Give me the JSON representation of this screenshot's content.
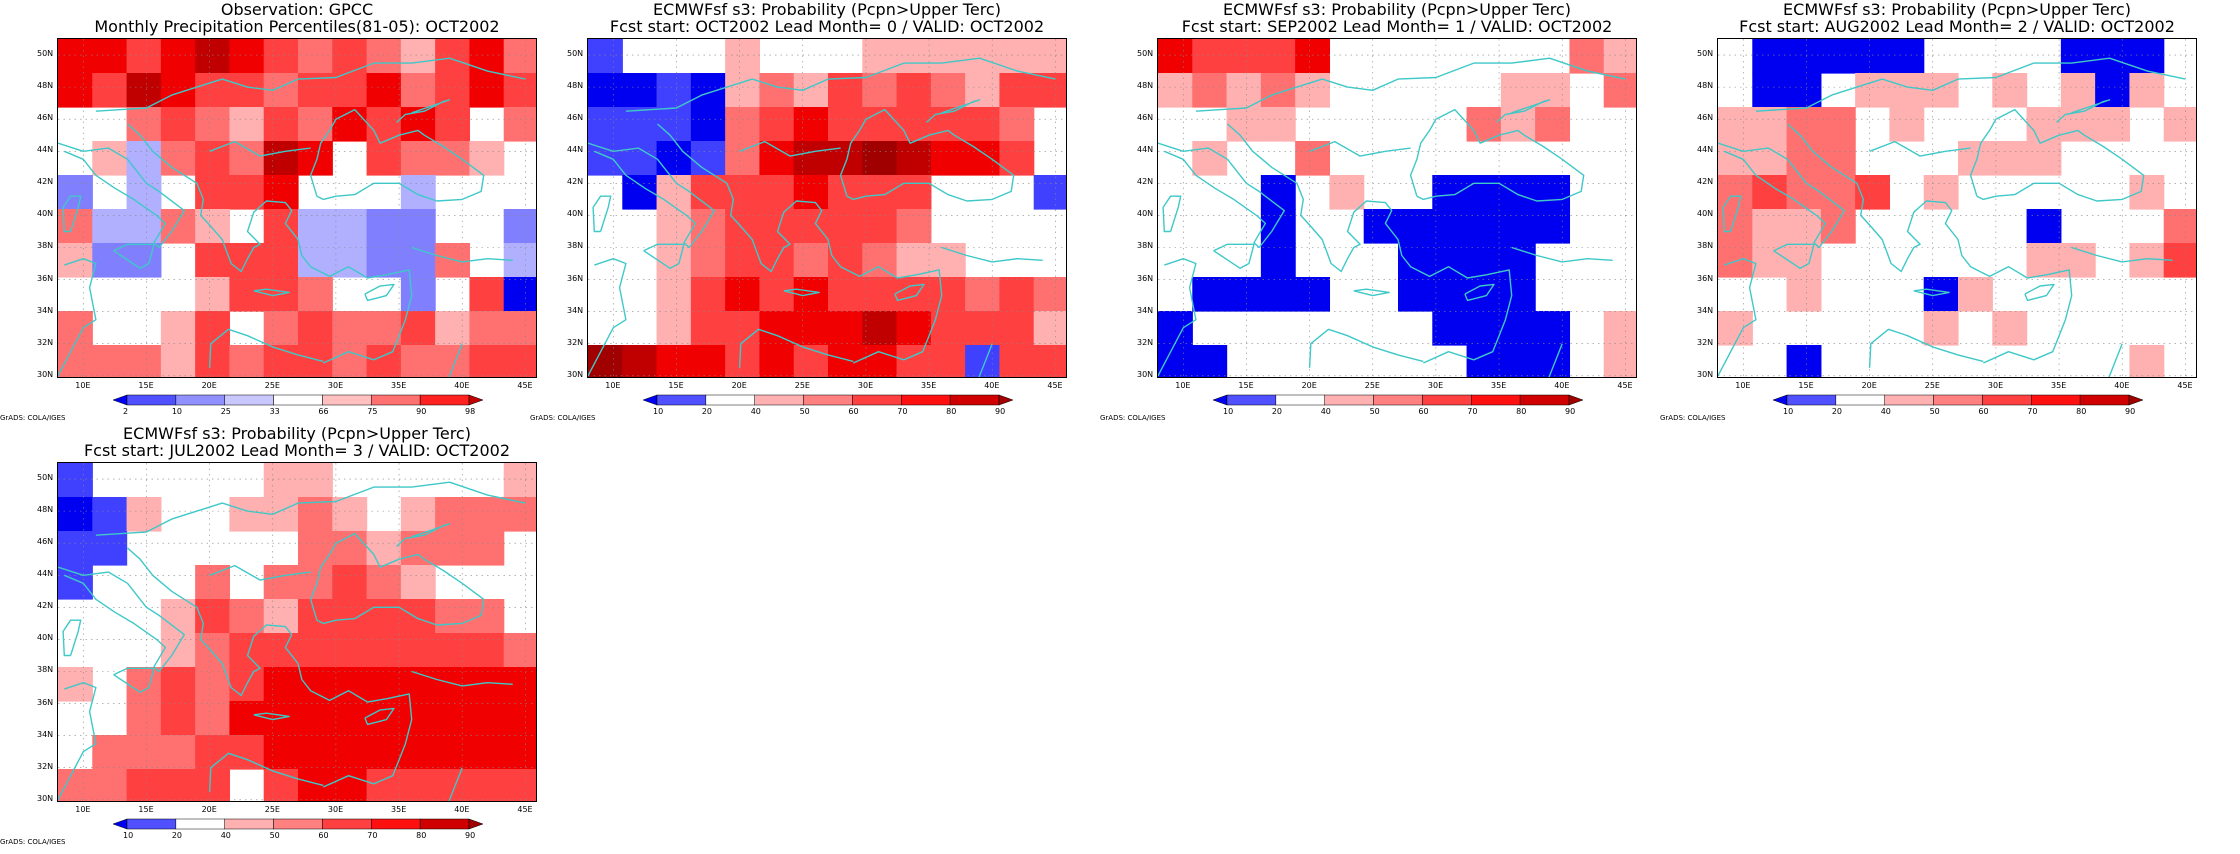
{
  "credit": "GrADS: COLA/IGES",
  "lon_labels": [
    "10E",
    "15E",
    "20E",
    "25E",
    "30E",
    "35E",
    "40E",
    "45E"
  ],
  "lat_labels": [
    "50N",
    "48N",
    "46N",
    "44N",
    "42N",
    "40N",
    "38N",
    "36N",
    "34N",
    "32N",
    "30N"
  ],
  "coast_color": "#3fc8c8",
  "obs_scale": {
    "labels": [
      "2",
      "10",
      "25",
      "33",
      "66",
      "75",
      "90",
      "98"
    ],
    "colors": [
      "#0000f0",
      "#5050ff",
      "#9090ff",
      "#c8c8ff",
      "#ffffff",
      "#ffc0c0",
      "#ff7070",
      "#ff2020",
      "#c00000"
    ]
  },
  "prob_scale": {
    "labels": [
      "10",
      "20",
      "40",
      "50",
      "60",
      "70",
      "80",
      "90"
    ],
    "colors": [
      "#0000f0",
      "#5050ff",
      "#ffffff",
      "#ffb0b0",
      "#ff8080",
      "#ff4040",
      "#ff1010",
      "#d00000",
      "#a00000"
    ]
  },
  "legend_codes": {
    "W": "#ffffff",
    "b1": "#0000f0",
    "b2": "#4040ff",
    "b3": "#8080ff",
    "b4": "#b0b0ff",
    "r1": "#ffb0b0",
    "r2": "#ff7070",
    "r3": "#ff4040",
    "r4": "#f00000",
    "r5": "#c00000",
    "r6": "#a00000"
  },
  "panels": [
    {
      "id": "obs",
      "title_line1": "Observation: GPCC",
      "title_line2": "Monthly Precipitation Percentiles(81-05): OCT2002",
      "scale": "obs_scale",
      "grid": [
        "r4 r4 r3 r4 r5 r4 r3 r2 r3 r2 r1 r3 r4 r2",
        "r4 r3 r5 r4 r3 r3 r2 r3 r3 r4 r2 r3 r4 r3",
        "W  W  r2 r3 r2 r1 r3 r2 r4 r3 r4 r3 W  r2",
        "W  r1 b4 r2 r3 r2 r5 r4 W  r3 r2 r2 r1 W ",
        "b3 W  b4 W  r3 r3 r4 W  W  W  b4 W  W  W ",
        "r2 b4 b4 r2 r1 W  r3 b4 b4 b3 b3 W  W  b3",
        "r1 b3 b3 W  r3 r3 r3 b4 b4 b3 b3 r2 W  b4",
        "W  W  W  W  r1 r3 r3 r2 W  W  b3 W  r3 b1",
        "r2 W  W  r1 r3 W  r2 r3 r2 r2 r3 r1 r2 r2",
        "r2 r2 r2 r1 r3 r2 r3 r3 r2 r3 r2 r2 r3 r3"
      ]
    },
    {
      "id": "lead0",
      "title_line1": "ECMWFsf s3: Probability (Pcpn>Upper Terc)",
      "title_line2": "Fcst start: OCT2002  Lead Month= 0 / VALID: OCT2002",
      "scale": "prob_scale",
      "grid": [
        "b2 W  W  W  r1 W  W  W  r1 r1 r1 r1 r1 r1",
        "b1 b1 b2 b1 r1 r2 r1 r3 r2 r3 r2 r1 r3 r3",
        "b2 b2 b2 b1 r2 r3 r4 r3 r3 r3 r3 r3 r2 W ",
        "b2 b2 b1 b2 r2 r4 r5 r5 r6 r5 r4 r4 r3 W ",
        "W  b1 r1 r3 r3 r3 r4 r3 r3 r3 W  W  W  b2",
        "W  W  r1 r2 r3 r3 r3 r3 r3 r2 W  W  W  W ",
        "W  W  r1 r2 r3 r3 r2 r3 r2 r1 r1 W  W  W ",
        "W  W  r1 r3 r4 r3 r4 r3 r3 r3 r3 r2 r3 r2",
        "W  W  r1 r3 r3 r4 r4 r4 r5 r4 r3 r3 r3 r1",
        "r6 r5 r4 r4 r3 r4 r3 r4 r4 r3 r3 b2 r3 r3"
      ]
    },
    {
      "id": "lead1",
      "title_line1": "ECMWFsf s3: Probability (Pcpn>Upper Terc)",
      "title_line2": "Fcst start: SEP2002  Lead Month= 1 / VALID: OCT2002",
      "scale": "prob_scale",
      "grid": [
        "r4 r3 r3 r3 r4 W  W  W  W  W  W  W  r2 r1",
        "r1 r2 r1 r2 r1 W  W  W  W  W  r1 r1 W  r2",
        "W  W  r1 r1 W  W  W  W  W  r2 r1 r2 W  W ",
        "W  r1 W  W  r2 W  W  W  W  W  W  W  W  W ",
        "W  W  W  b1 W  r1 W  W  b1 b1 b1 b1 W  W ",
        "W  W  W  b1 W  W  b1 b1 b1 b1 b1 b1 W  W ",
        "W  W  W  b1 W  W  W  b1 b1 b1 b1 W  W  W ",
        "W  b1 b1 b1 b1 W  W  b1 b1 b1 b1 W  W  W ",
        "b1 W  W  W  W  W  W  W  b1 b1 b1 b1 W  r1",
        "b1 b1 W  W  W  W  W  W  W  b1 b1 b1 W  r1"
      ]
    },
    {
      "id": "lead2",
      "title_line1": "ECMWFsf s3: Probability (Pcpn>Upper Terc)",
      "title_line2": "Fcst start: AUG2002  Lead Month= 2 / VALID: OCT2002",
      "scale": "prob_scale",
      "grid": [
        "W  b1 b1 b1 b1 b1 W  W  W  W  b1 b1 b1 W ",
        "W  b1 b1 W  r1 r1 r1 W  r1 W  r1 b1 r1 W ",
        "r1 r1 r2 r2 W  r1 W  W  W  r1 r1 r1 W  r1",
        "r1 r1 r2 r2 W  W  W  r1 r1 r1 W  W  W  W ",
        "r2 r3 r2 r2 r3 W  r1 W  W  W  W  W  r1 W ",
        "r2 r1 r1 r2 W  W  W  W  W  b1 W  W  W  r2",
        "r2 r1 r1 W  W  W  W  W  W  r1 r1 W  r1 r3",
        "W  W  r1 W  W  W  b1 r1 W  W  W  W  W  W ",
        "r1 W  W  W  W  W  r1 W  r1 W  W  W  W  W ",
        "W  W  b1 W  W  W  W  W  W  W  W  W  r1 W "
      ]
    },
    {
      "id": "lead3",
      "title_line1": "ECMWFsf s3: Probability (Pcpn>Upper Terc)",
      "title_line2": "Fcst start: JUL2002  Lead Month= 3 / VALID: OCT2002",
      "scale": "prob_scale",
      "grid": [
        "b2 W  W  W  W  W  r1 r1 W  W  W  W  W  r1",
        "b1 b2 r1 W  W  r1 r1 r2 r1 W  r1 r2 r2 r2",
        "b2 b2 W  W  W  W  W  r2 r2 r1 r2 r2 r2 W ",
        "b2 W  W  W  r2 W  r2 r2 r3 r2 r1 W  W  W ",
        "W  W  W  r1 r3 r2 r1 r3 r3 r3 r3 r2 r2 W ",
        "W  W  W  r1 r2 r3 r3 r3 r3 r3 r3 r3 r3 r2",
        "r1 W  r2 r3 r2 r3 r4 r4 r4 r4 r4 r4 r4 r4",
        "W  W  r2 r3 r2 r4 r4 r4 r4 r4 r4 r4 r4 r4",
        "W  r2 r2 r2 r3 r3 r4 r4 r4 r4 r4 r4 r4 r4",
        "r2 r2 r3 r3 r3 W  r3 r4 r4 r3 r3 r3 r3 r3"
      ]
    }
  ]
}
